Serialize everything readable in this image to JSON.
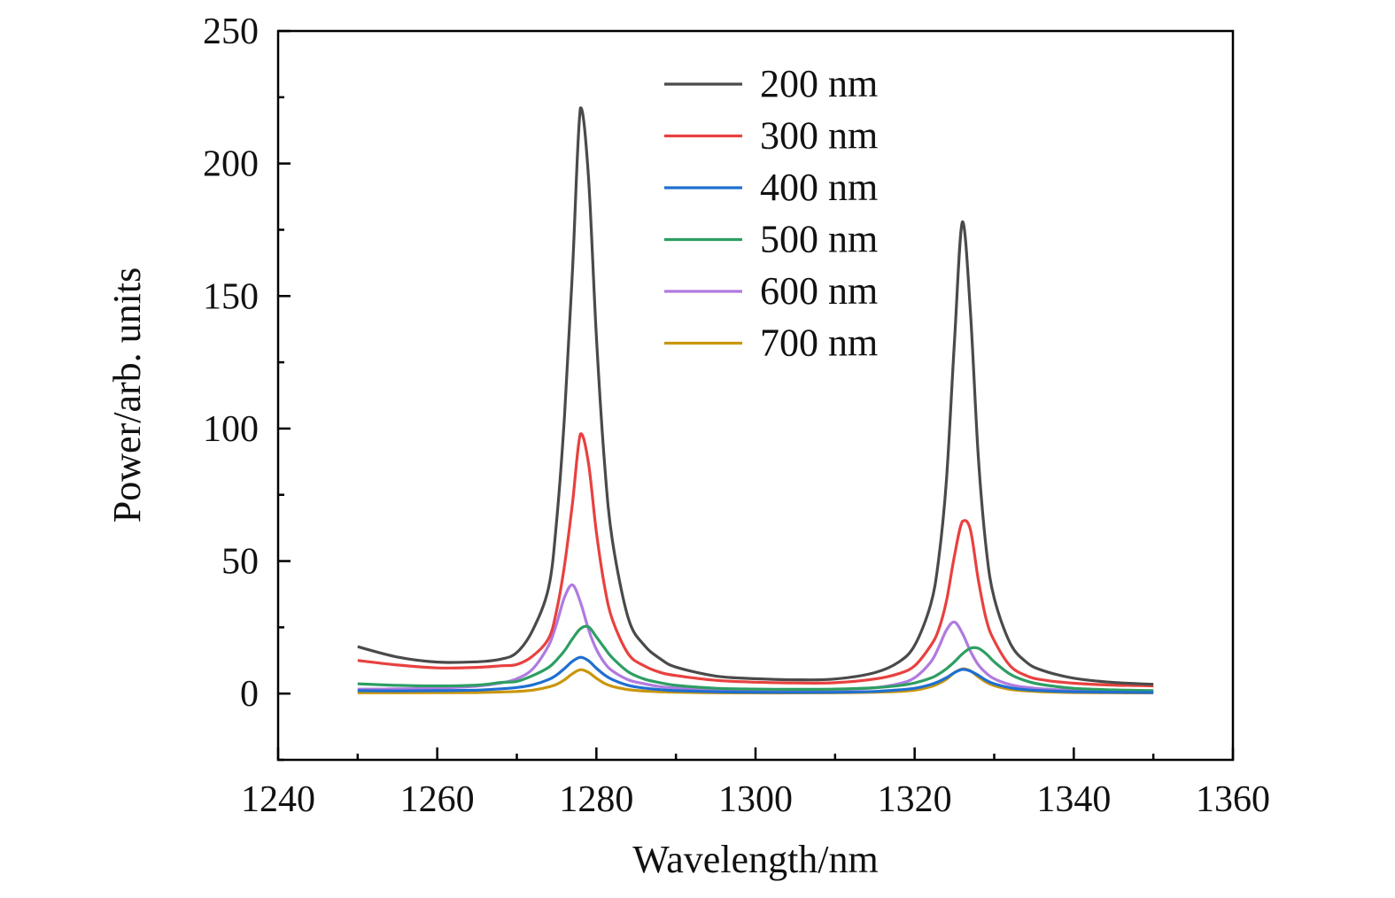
{
  "chart_data": {
    "type": "line",
    "title": "",
    "xlabel": "Wavelength/nm",
    "ylabel": "Power/arb. units",
    "xlim": [
      1240,
      1360
    ],
    "ylim": [
      -25,
      250
    ],
    "x_ticks": [
      1240,
      1260,
      1280,
      1300,
      1320,
      1340,
      1360
    ],
    "x_tick_labels": [
      "1240",
      "1260",
      "1280",
      "1300",
      "1320",
      "1340",
      "1360"
    ],
    "y_ticks": [
      0,
      50,
      100,
      150,
      200,
      250
    ],
    "y_tick_labels": [
      "0",
      "50",
      "100",
      "150",
      "200",
      "250"
    ],
    "x_minor_step": 10,
    "y_minor_step": 25,
    "grid": false,
    "legend_position": "top-center",
    "x": [
      1250,
      1255,
      1260,
      1265,
      1268,
      1270,
      1272,
      1274,
      1275,
      1276,
      1277,
      1278,
      1279,
      1280,
      1281,
      1282,
      1284,
      1286,
      1288,
      1290,
      1295,
      1300,
      1305,
      1310,
      1315,
      1318,
      1320,
      1322,
      1323,
      1324,
      1325,
      1326,
      1327,
      1328,
      1329,
      1330,
      1332,
      1334,
      1336,
      1340,
      1345,
      1350
    ],
    "series": [
      {
        "name": "200 nm",
        "color": "#4a4a4a",
        "values": [
          17.7,
          13.8,
          11.9,
          12.0,
          13.0,
          15.5,
          24,
          40,
          65,
          105,
          160,
          221,
          195,
          135,
          88,
          58,
          28.5,
          18.3,
          13.2,
          10.0,
          6.6,
          5.6,
          5.2,
          5.5,
          7.9,
          11.9,
          18.2,
          33.4,
          50.2,
          80.7,
          132.7,
          178,
          144.7,
          89.6,
          54.6,
          36,
          19,
          12,
          8.8,
          5.8,
          4.2,
          3.5
        ]
      },
      {
        "name": "300 nm",
        "color": "#e8413f",
        "values": [
          12.5,
          10.8,
          9.7,
          9.9,
          10.5,
          11,
          14.2,
          20.8,
          31.3,
          48.5,
          72,
          98,
          87,
          61,
          41,
          28,
          15,
          10.5,
          8,
          6.8,
          5,
          4.3,
          4.0,
          4.1,
          5.5,
          7.5,
          10.5,
          18,
          24,
          35,
          52,
          65,
          62,
          43,
          28,
          20,
          10.5,
          6.8,
          5.2,
          3.9,
          3.2,
          2.9
        ]
      },
      {
        "name": "400 nm",
        "color": "#1f6fd1",
        "values": [
          1.1,
          1.0,
          1.1,
          1.3,
          1.8,
          2.3,
          3.3,
          5.3,
          7.0,
          9.5,
          12.2,
          13.7,
          12.4,
          9.6,
          7.1,
          5.3,
          3.1,
          2.1,
          1.5,
          1.1,
          0.7,
          0.5,
          0.45,
          0.5,
          0.8,
          1.4,
          2.0,
          3.4,
          4.5,
          6.0,
          7.9,
          9.1,
          8.5,
          6.9,
          5.0,
          3.7,
          2.2,
          1.45,
          1.1,
          0.7,
          0.5,
          0.4
        ]
      },
      {
        "name": "500 nm",
        "color": "#2e9e63",
        "values": [
          3.7,
          3.1,
          2.9,
          3.2,
          4.2,
          4.6,
          6.8,
          9.9,
          12.7,
          16.2,
          20.7,
          24.5,
          25.2,
          21.4,
          17.3,
          13.5,
          8.2,
          5.5,
          4.1,
          3.1,
          2.0,
          1.7,
          1.6,
          1.7,
          2.2,
          3.0,
          4.0,
          5.8,
          7.3,
          9.4,
          12,
          15,
          17.1,
          17.1,
          15,
          12,
          7.3,
          4.8,
          3.4,
          2.0,
          1.4,
          1.1
        ]
      },
      {
        "name": "600 nm",
        "color": "#b07ae0",
        "values": [
          1.65,
          1.75,
          2.05,
          2.8,
          4.0,
          5.6,
          9.3,
          18.1,
          26.4,
          36.4,
          41,
          34.4,
          24.3,
          16.7,
          11.7,
          8.6,
          5.2,
          3.7,
          2.65,
          2.1,
          1.5,
          1.3,
          1.25,
          1.45,
          2.2,
          3.7,
          6.0,
          11.8,
          17.3,
          24,
          27,
          22.7,
          16.1,
          10.9,
          7.7,
          5.6,
          3.4,
          2.35,
          1.8,
          1.2,
          0.9,
          0.75
        ]
      },
      {
        "name": "700 nm",
        "color": "#c9960c",
        "values": [
          0.3,
          0.3,
          0.35,
          0.4,
          0.6,
          0.8,
          1.3,
          2.5,
          3.5,
          5.2,
          7.5,
          9.0,
          8.0,
          5.8,
          3.9,
          2.7,
          1.5,
          0.95,
          0.7,
          0.5,
          0.3,
          0.25,
          0.25,
          0.3,
          0.5,
          0.8,
          1.3,
          2.6,
          3.7,
          5.4,
          7.9,
          9.3,
          8.6,
          6.3,
          4.3,
          3.0,
          1.6,
          1.0,
          0.7,
          0.4,
          0.3,
          0.25
        ]
      }
    ]
  }
}
